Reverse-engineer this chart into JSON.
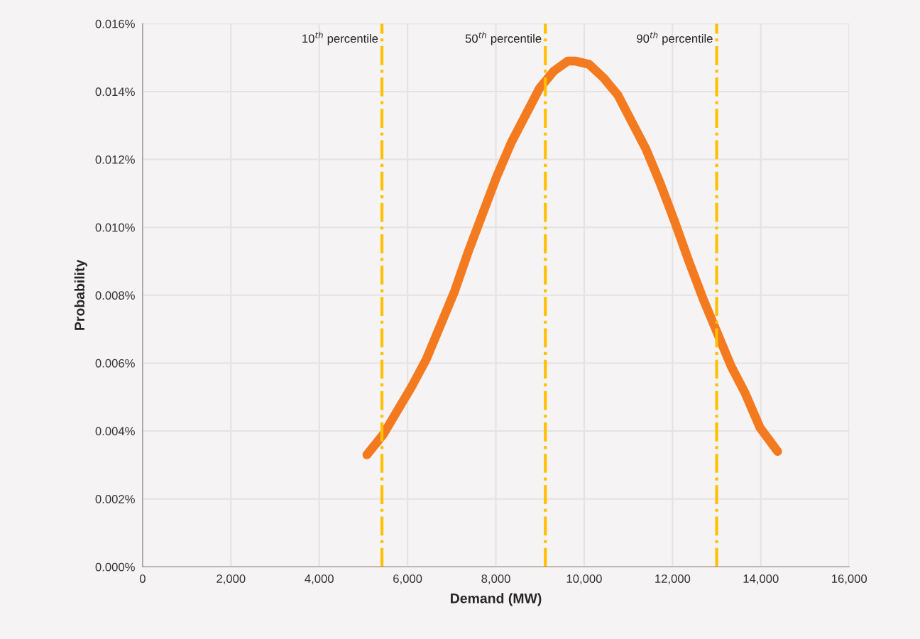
{
  "chart_data": {
    "type": "line",
    "xlabel": "Demand (MW)",
    "ylabel": "Probability",
    "x": [
      5080,
      5450,
      5770,
      6090,
      6420,
      6740,
      7060,
      7380,
      7700,
      8020,
      8350,
      8670,
      8990,
      9310,
      9630,
      9790,
      10110,
      10440,
      10760,
      11080,
      11400,
      11720,
      12040,
      12370,
      12690,
      13010,
      13330,
      13650,
      13980,
      14380
    ],
    "series": [
      {
        "color": "#f47a20",
        "values": [
          0.0033,
          0.0039,
          0.0046,
          0.0053,
          0.0061,
          0.0071,
          0.0081,
          0.0093,
          0.0104,
          0.0115,
          0.0125,
          0.0133,
          0.0141,
          0.0146,
          0.0149,
          0.0149,
          0.0148,
          0.0144,
          0.0139,
          0.0131,
          0.0123,
          0.0113,
          0.0102,
          0.009,
          0.0079,
          0.0069,
          0.0059,
          0.0051,
          0.0041,
          0.0034
        ]
      }
    ],
    "xlim": [
      0,
      16000
    ],
    "xticks": [
      0,
      {
        "value": 2000,
        "label": "2,000"
      },
      {
        "value": 4000,
        "label": "4,000"
      },
      {
        "value": 6000,
        "label": "6,000"
      },
      {
        "value": 8000,
        "label": "8,000"
      },
      {
        "value": 10000,
        "label": "10,000"
      },
      {
        "value": 12000,
        "label": "12,000"
      },
      {
        "value": 14000,
        "label": "14,000"
      },
      {
        "value": 16000,
        "label": "16,000"
      }
    ],
    "ylim": [
      0,
      0.016
    ],
    "yticks": [
      {
        "value": 0,
        "label": "0.000%"
      },
      {
        "value": 0.002,
        "label": "0.002%"
      },
      {
        "value": 0.004,
        "label": "0.004%"
      },
      {
        "value": 0.006,
        "label": "0.006%"
      },
      {
        "value": 0.008,
        "label": "0.008%"
      },
      {
        "value": 0.01,
        "label": "0.010%"
      },
      {
        "value": 0.012,
        "label": "0.012%"
      },
      {
        "value": 0.014,
        "label": "0.014%"
      },
      {
        "value": 0.016,
        "label": "0.016%"
      }
    ],
    "ref_lines": [
      {
        "axis": "x",
        "value": 5420,
        "label": "10$^{th}$ percentile",
        "color": "#ffc000",
        "line_style": "dashdot"
      },
      {
        "axis": "x",
        "value": 9120,
        "label": "50$^{th}$ percentile",
        "color": "#ffc000",
        "line_style": "dashdot"
      },
      {
        "axis": "x",
        "value": 13000,
        "label": "90$^{th}$ percentile",
        "color": "#ffc000",
        "line_style": "dashdot"
      }
    ],
    "grid": true,
    "marker": "none",
    "line_style": "solid"
  }
}
